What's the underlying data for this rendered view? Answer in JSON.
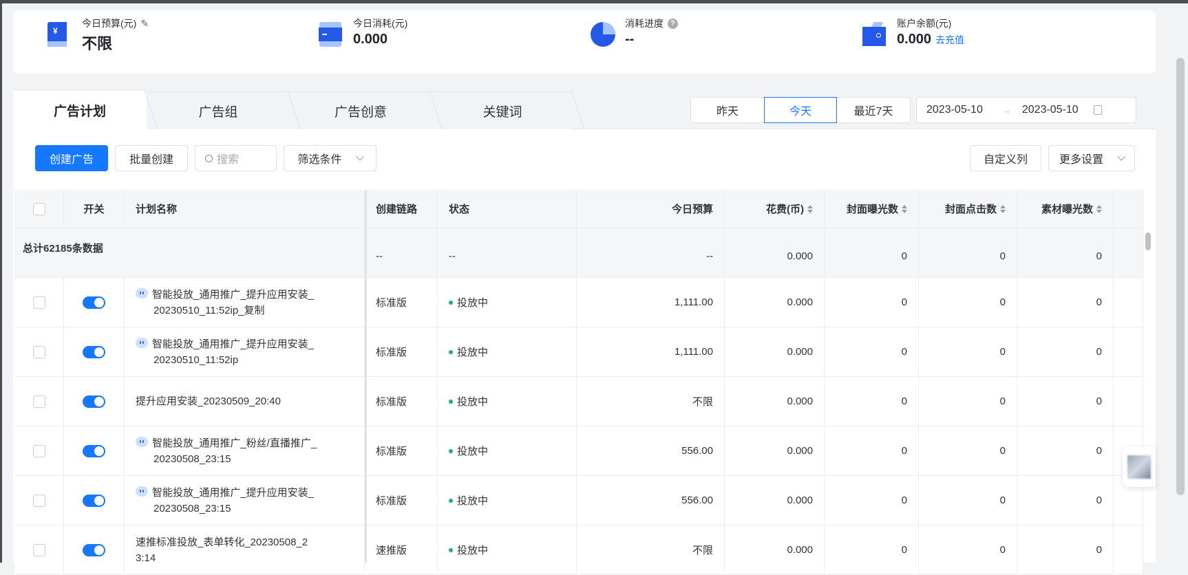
{
  "summary": [
    {
      "label": "今日预算(元)",
      "value": "不限",
      "icon": "budget-icon"
    },
    {
      "label": "今日消耗(元)",
      "value": "0.000",
      "icon": "wallet-card-icon"
    },
    {
      "label": "消耗进度",
      "value": "--",
      "icon": "pie-progress-icon"
    },
    {
      "label": "账户余额(元)",
      "value": "0.000",
      "link": "去充值",
      "icon": "wallet-icon"
    }
  ],
  "tabs": [
    "广告计划",
    "广告组",
    "广告创意",
    "关键词"
  ],
  "date_segments": [
    "昨天",
    "今天",
    "最近7天"
  ],
  "date_selected": "今天",
  "date_range": {
    "start": "2023-05-10",
    "end": "2023-05-10",
    "separator": "→"
  },
  "toolbar": {
    "create": "创建广告",
    "batch": "批量创建",
    "search_placeholder": "搜索",
    "filter": "筛选条件",
    "custom_columns": "自定义列",
    "more_settings": "更多设置"
  },
  "colors": {
    "accent": "#1677ff",
    "status_running": "#21b26f"
  },
  "table": {
    "columns": [
      "",
      "开关",
      "计划名称",
      "创建链路",
      "状态",
      "今日预算",
      "花费(币)",
      "封面曝光数",
      "封面点击数",
      "素材曝光数"
    ],
    "total": {
      "label": "总计62185条数据",
      "chain": "--",
      "status": "--",
      "budget": "--",
      "cost": "0.000",
      "cover_impr": "0",
      "cover_click": "0",
      "material_impr": "0"
    },
    "rows": [
      {
        "smart": true,
        "name": "智能投放_通用推广_提升应用安装_",
        "name2": "20230510_11:52ip_复制",
        "chain": "标准版",
        "status": "投放中",
        "budget": "1,111.00",
        "cost": "0.000",
        "cover_impr": "0",
        "cover_click": "0",
        "material_impr": "0"
      },
      {
        "smart": true,
        "name": "智能投放_通用推广_提升应用安装_",
        "name2": "20230510_11:52ip",
        "chain": "标准版",
        "status": "投放中",
        "budget": "1,111.00",
        "cost": "0.000",
        "cover_impr": "0",
        "cover_click": "0",
        "material_impr": "0"
      },
      {
        "smart": false,
        "name": "提升应用安装_20230509_20:40",
        "name2": "",
        "chain": "标准版",
        "status": "投放中",
        "budget": "不限",
        "cost": "0.000",
        "cover_impr": "0",
        "cover_click": "0",
        "material_impr": "0"
      },
      {
        "smart": true,
        "name": "智能投放_通用推广_粉丝/直播推广_",
        "name2": "20230508_23:15",
        "chain": "标准版",
        "status": "投放中",
        "budget": "556.00",
        "cost": "0.000",
        "cover_impr": "0",
        "cover_click": "0",
        "material_impr": "0"
      },
      {
        "smart": true,
        "name": "智能投放_通用推广_提升应用安装_",
        "name2": "20230508_23:15",
        "chain": "标准版",
        "status": "投放中",
        "budget": "556.00",
        "cost": "0.000",
        "cover_impr": "0",
        "cover_click": "0",
        "material_impr": "0"
      },
      {
        "smart": false,
        "name": "速推标准投放_表单转化_20230508_2",
        "name2": "3:14",
        "chain": "速推版",
        "status": "投放中",
        "budget": "不限",
        "cost": "0.000",
        "cover_impr": "0",
        "cover_click": "0",
        "material_impr": "0"
      }
    ]
  }
}
